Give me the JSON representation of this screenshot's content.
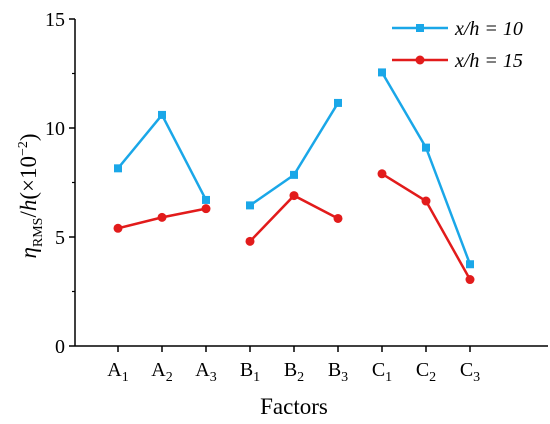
{
  "chart_data": {
    "type": "line",
    "categories": [
      {
        "letter": "A",
        "sub": "1"
      },
      {
        "letter": "A",
        "sub": "2"
      },
      {
        "letter": "A",
        "sub": "3"
      },
      {
        "letter": "B",
        "sub": "1"
      },
      {
        "letter": "B",
        "sub": "2"
      },
      {
        "letter": "B",
        "sub": "3"
      },
      {
        "letter": "C",
        "sub": "1"
      },
      {
        "letter": "C",
        "sub": "2"
      },
      {
        "letter": "C",
        "sub": "3"
      }
    ],
    "groups": [
      [
        0,
        1,
        2
      ],
      [
        3,
        4,
        5
      ],
      [
        6,
        7,
        8
      ]
    ],
    "series": [
      {
        "name": "x/h = 10",
        "color": "#1aa7e8",
        "marker": "square",
        "values": [
          8.15,
          10.6,
          6.7,
          6.45,
          7.85,
          11.15,
          12.55,
          9.1,
          3.75
        ]
      },
      {
        "name": "x/h = 15",
        "color": "#e21b1b",
        "marker": "circle",
        "values": [
          5.4,
          5.9,
          6.3,
          4.8,
          6.9,
          5.85,
          7.9,
          6.65,
          3.05
        ]
      }
    ],
    "xlabel": "Factors",
    "ylabel": "ηRMS/h(×10−2)",
    "ylim": [
      0,
      15
    ],
    "yticks": [
      0,
      5,
      10,
      15
    ],
    "grid": false,
    "legend_position": "top-right"
  }
}
